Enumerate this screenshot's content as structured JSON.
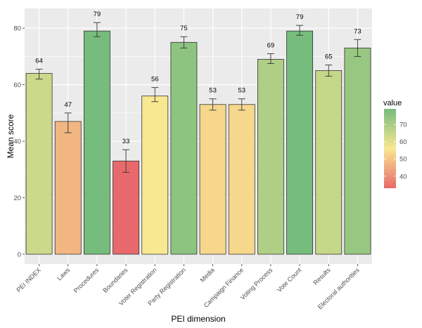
{
  "chart_data": {
    "type": "bar",
    "title": "",
    "xlabel": "PEI dimension",
    "ylabel": "Mean score",
    "categories": [
      "PEI INDEX",
      "Laws",
      "Procedures",
      "Boundaries",
      "Voter Registration",
      "Party Registration",
      "Media",
      "Campaign Finance",
      "Voting Process",
      "Vote Count",
      "Results",
      "Electoral authorities"
    ],
    "values": [
      64,
      47,
      79,
      33,
      56,
      75,
      53,
      53,
      69,
      79,
      65,
      73
    ],
    "data_labels": [
      "64",
      "47",
      "79",
      "33",
      "56",
      "75",
      "53",
      "53",
      "69",
      "79",
      "65",
      "73"
    ],
    "error_low": [
      62,
      43,
      77,
      29,
      54,
      73,
      51,
      51,
      67.5,
      77.5,
      63,
      70
    ],
    "error_high": [
      65.5,
      50,
      82,
      37,
      59,
      77,
      55,
      55,
      71,
      81,
      67,
      76
    ],
    "ylim": [
      0,
      87
    ],
    "yticks": [
      0,
      20,
      40,
      60,
      80
    ],
    "ytick_labels": [
      "0",
      "20",
      "40",
      "60",
      "80"
    ],
    "grid": true,
    "legend": {
      "title": "value",
      "position": "right",
      "type": "colorbar",
      "range": [
        33,
        79
      ],
      "ticks": [
        40,
        50,
        60,
        70
      ],
      "tick_labels": [
        "40",
        "50",
        "60",
        "70"
      ],
      "colors": [
        "#e8696b",
        "#f8e891",
        "#76bc7d"
      ]
    },
    "colors": {
      "panel": "#ebebeb",
      "grid_major": "#ffffff",
      "bar_outline": "#333333",
      "errorbar": "#333333"
    }
  }
}
